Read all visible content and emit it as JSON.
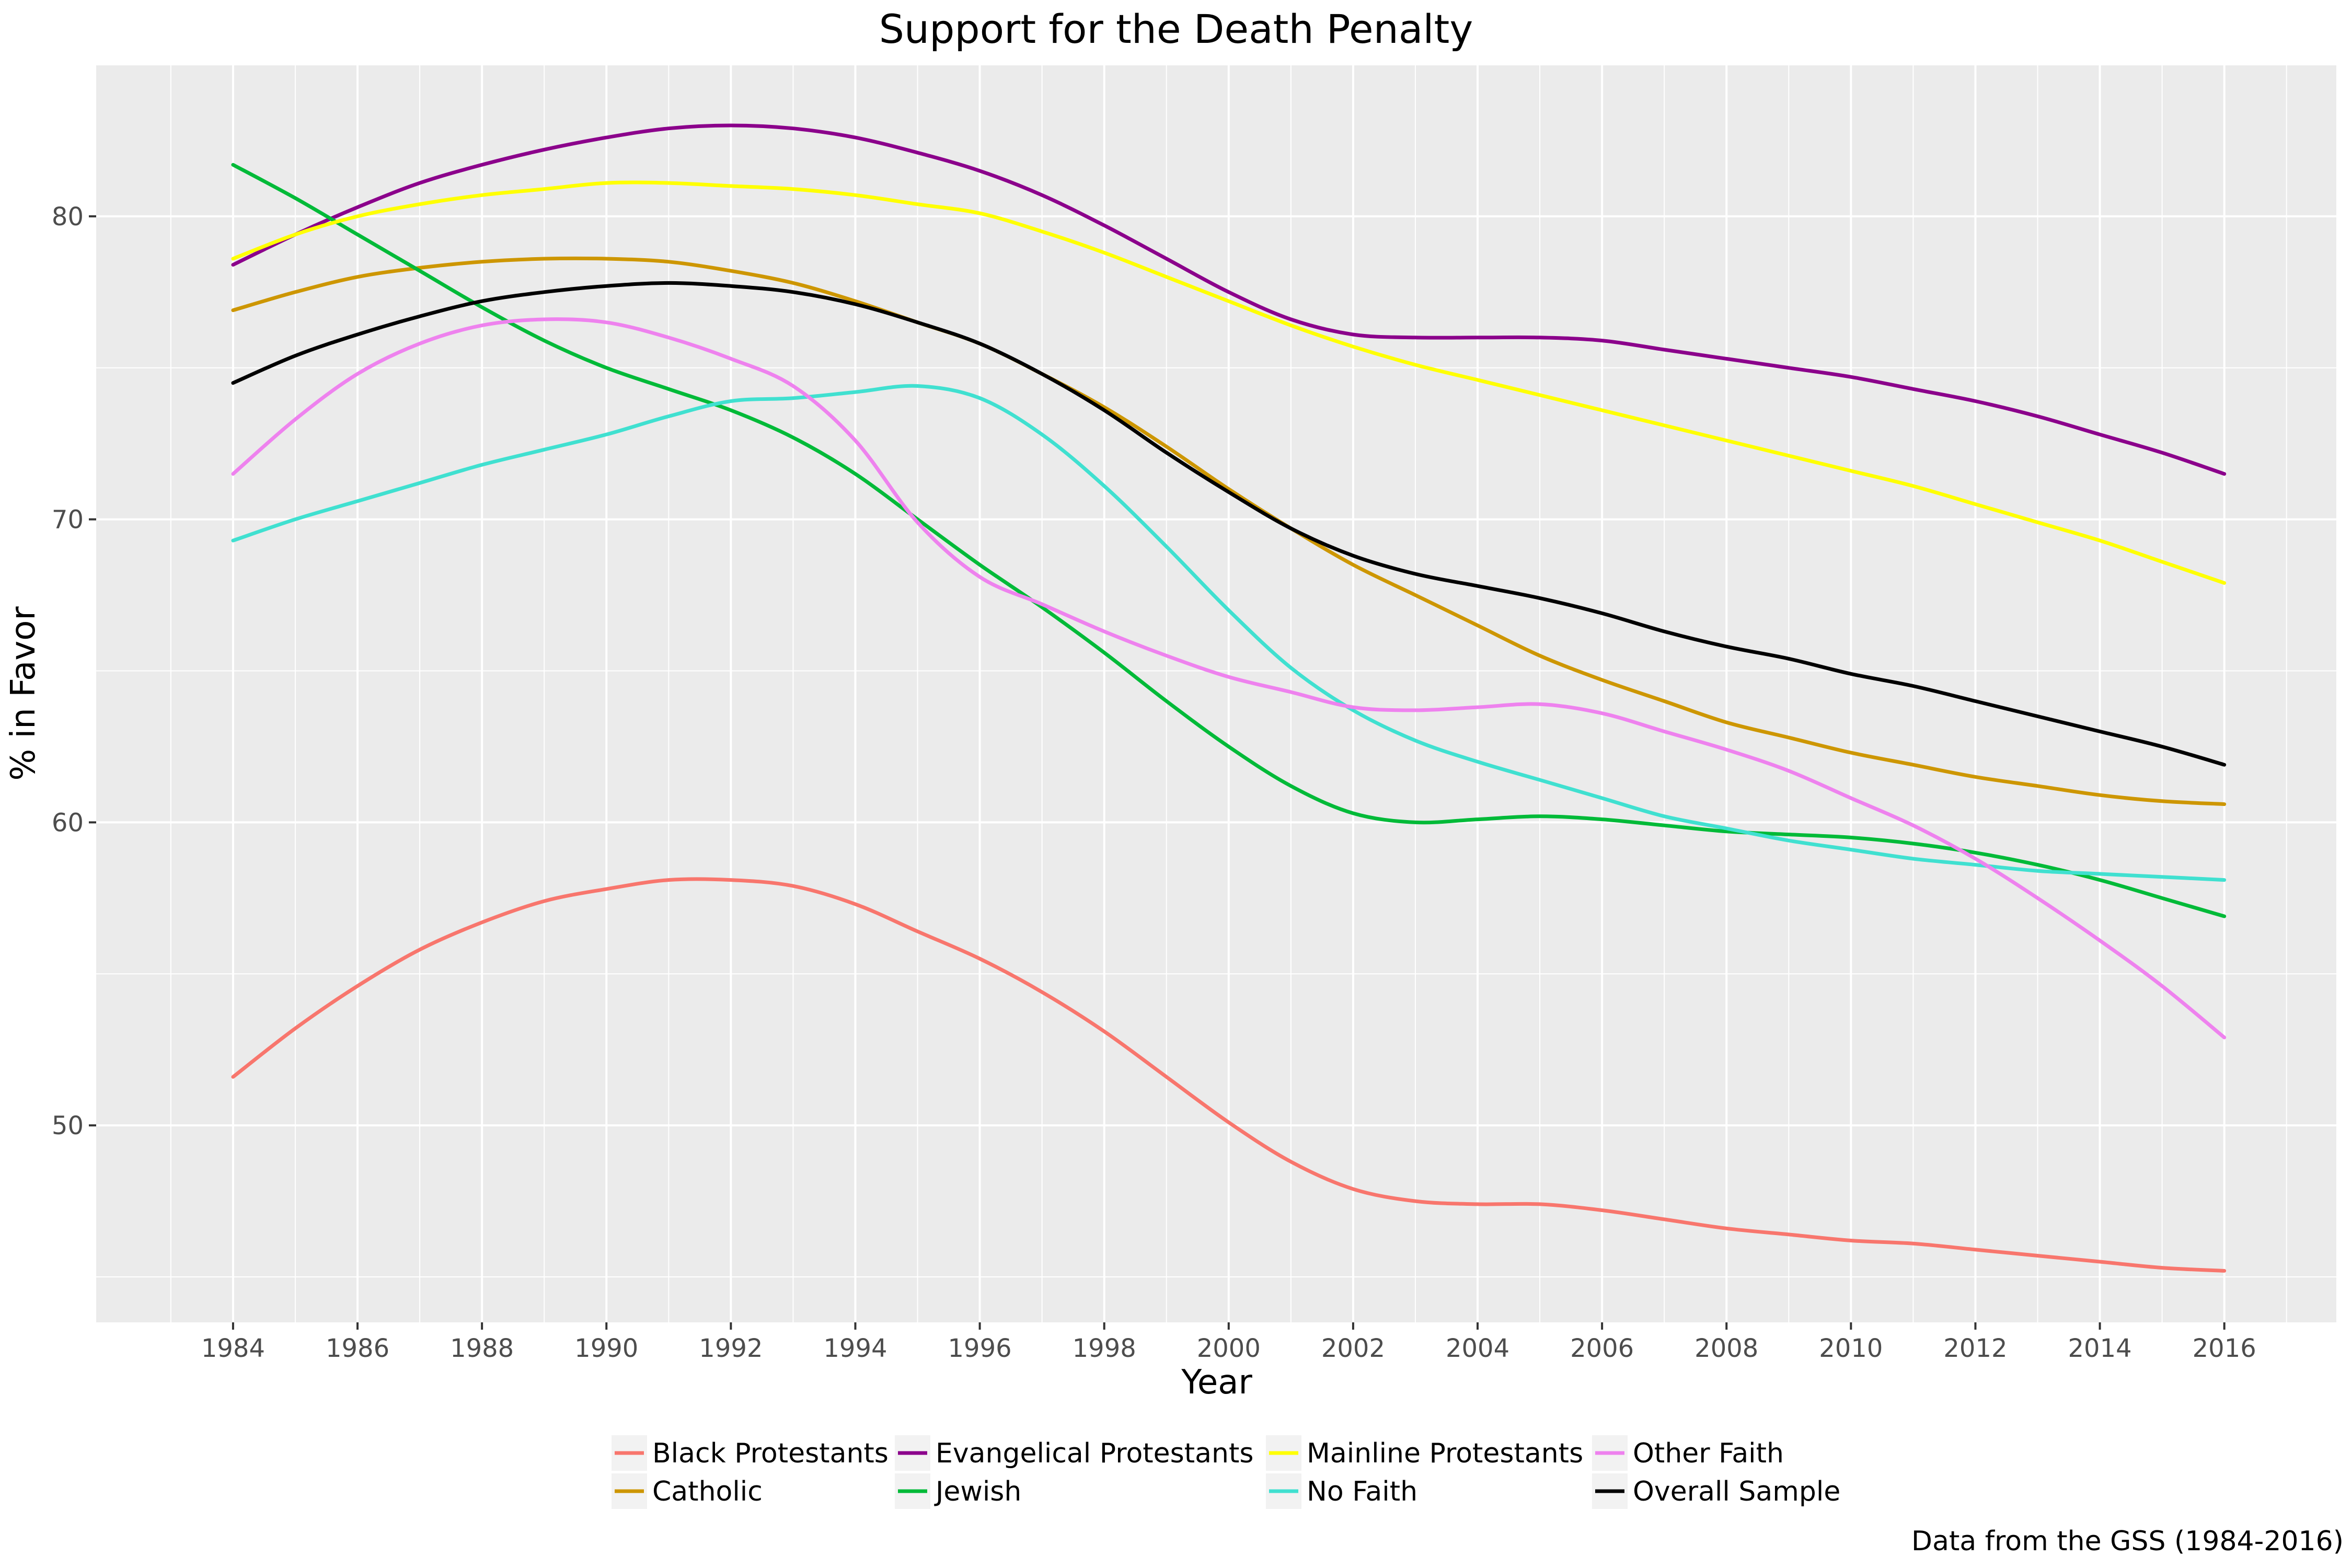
{
  "chart_data": {
    "type": "line",
    "title": "Support for the Death Penalty",
    "xlabel": "Year",
    "ylabel": "% in Favor",
    "caption": "Data from the GSS (1984-2016)",
    "xlim": [
      1981.8,
      2017.8
    ],
    "ylim": [
      43.5,
      85.0
    ],
    "x_ticks": [
      1984,
      1986,
      1988,
      1990,
      1992,
      1994,
      1996,
      1998,
      2000,
      2002,
      2004,
      2006,
      2008,
      2010,
      2012,
      2014,
      2016
    ],
    "y_ticks": [
      50,
      60,
      70,
      80
    ],
    "grid": true,
    "legend_position": "bottom",
    "x": [
      1984,
      1985,
      1986,
      1987,
      1988,
      1989,
      1990,
      1991,
      1992,
      1993,
      1994,
      1995,
      1996,
      1997,
      1998,
      1999,
      2000,
      2001,
      2002,
      2003,
      2004,
      2005,
      2006,
      2007,
      2008,
      2009,
      2010,
      2011,
      2012,
      2013,
      2014,
      2015,
      2016
    ],
    "series": [
      {
        "name": "Black Protestants",
        "color": "#F8766D",
        "values": [
          51.6,
          53.2,
          54.6,
          55.8,
          56.7,
          57.4,
          57.8,
          58.1,
          58.1,
          57.9,
          57.3,
          56.4,
          55.5,
          54.4,
          53.1,
          51.6,
          50.1,
          48.8,
          47.9,
          47.5,
          47.4,
          47.4,
          47.2,
          46.9,
          46.6,
          46.4,
          46.2,
          46.1,
          45.9,
          45.7,
          45.5,
          45.3,
          45.2
        ]
      },
      {
        "name": "Catholic",
        "color": "#CD9600",
        "values": [
          76.9,
          77.5,
          78.0,
          78.3,
          78.5,
          78.6,
          78.6,
          78.5,
          78.2,
          77.8,
          77.2,
          76.5,
          75.8,
          74.8,
          73.7,
          72.4,
          71.0,
          69.7,
          68.5,
          67.5,
          66.5,
          65.5,
          64.7,
          64.0,
          63.3,
          62.8,
          62.3,
          61.9,
          61.5,
          61.2,
          60.9,
          60.7,
          60.6
        ]
      },
      {
        "name": "Evangelical Protestants",
        "color": "#8B008B",
        "values": [
          78.4,
          79.4,
          80.3,
          81.1,
          81.7,
          82.2,
          82.6,
          82.9,
          83.0,
          82.9,
          82.6,
          82.1,
          81.5,
          80.7,
          79.7,
          78.6,
          77.5,
          76.6,
          76.1,
          76.0,
          76.0,
          76.0,
          75.9,
          75.6,
          75.3,
          75.0,
          74.7,
          74.3,
          73.9,
          73.4,
          72.8,
          72.2,
          71.5
        ]
      },
      {
        "name": "Jewish",
        "color": "#00BA38",
        "values": [
          81.7,
          80.6,
          79.4,
          78.2,
          77.0,
          75.9,
          75.0,
          74.3,
          73.6,
          72.7,
          71.5,
          70.0,
          68.5,
          67.1,
          65.6,
          64.0,
          62.5,
          61.2,
          60.3,
          60.0,
          60.1,
          60.2,
          60.1,
          59.9,
          59.7,
          59.6,
          59.5,
          59.3,
          59.0,
          58.6,
          58.1,
          57.5,
          56.9
        ]
      },
      {
        "name": "Mainline Protestants",
        "color": "#FFFF00",
        "values": [
          78.6,
          79.4,
          80.0,
          80.4,
          80.7,
          80.9,
          81.1,
          81.1,
          81.0,
          80.9,
          80.7,
          80.4,
          80.1,
          79.5,
          78.8,
          78.0,
          77.2,
          76.4,
          75.7,
          75.1,
          74.6,
          74.1,
          73.6,
          73.1,
          72.6,
          72.1,
          71.6,
          71.1,
          70.5,
          69.9,
          69.3,
          68.6,
          67.9
        ]
      },
      {
        "name": "No Faith",
        "color": "#40E0D0",
        "values": [
          69.3,
          70.0,
          70.6,
          71.2,
          71.8,
          72.3,
          72.8,
          73.4,
          73.9,
          74.0,
          74.2,
          74.4,
          74.0,
          72.8,
          71.1,
          69.1,
          67.0,
          65.1,
          63.7,
          62.7,
          62.0,
          61.4,
          60.8,
          60.2,
          59.8,
          59.4,
          59.1,
          58.8,
          58.6,
          58.4,
          58.3,
          58.2,
          58.1
        ]
      },
      {
        "name": "Other Faith",
        "color": "#EE82EE",
        "values": [
          71.5,
          73.3,
          74.8,
          75.8,
          76.4,
          76.6,
          76.5,
          76.0,
          75.3,
          74.4,
          72.6,
          69.9,
          68.1,
          67.2,
          66.3,
          65.5,
          64.8,
          64.3,
          63.8,
          63.7,
          63.8,
          63.9,
          63.6,
          63.0,
          62.4,
          61.7,
          60.8,
          59.9,
          58.8,
          57.5,
          56.1,
          54.6,
          52.9
        ]
      },
      {
        "name": "Overall Sample",
        "color": "#000000",
        "values": [
          74.5,
          75.4,
          76.1,
          76.7,
          77.2,
          77.5,
          77.7,
          77.8,
          77.7,
          77.5,
          77.1,
          76.5,
          75.8,
          74.8,
          73.6,
          72.2,
          70.9,
          69.7,
          68.8,
          68.2,
          67.8,
          67.4,
          66.9,
          66.3,
          65.8,
          65.4,
          64.9,
          64.5,
          64.0,
          63.5,
          63.0,
          62.5,
          61.9
        ]
      }
    ]
  },
  "legend_columns": [
    [
      "Black Protestants",
      "Catholic"
    ],
    [
      "Evangelical Protestants",
      "Jewish"
    ],
    [
      "Mainline Protestants",
      "No Faith"
    ],
    [
      "Other Faith",
      "Overall Sample"
    ]
  ],
  "colors": {
    "panel_background": "#EBEBEB",
    "gridline": "#FFFFFF",
    "tick_text": "#4D4D4D",
    "legend_key_background": "#F2F2F2"
  }
}
